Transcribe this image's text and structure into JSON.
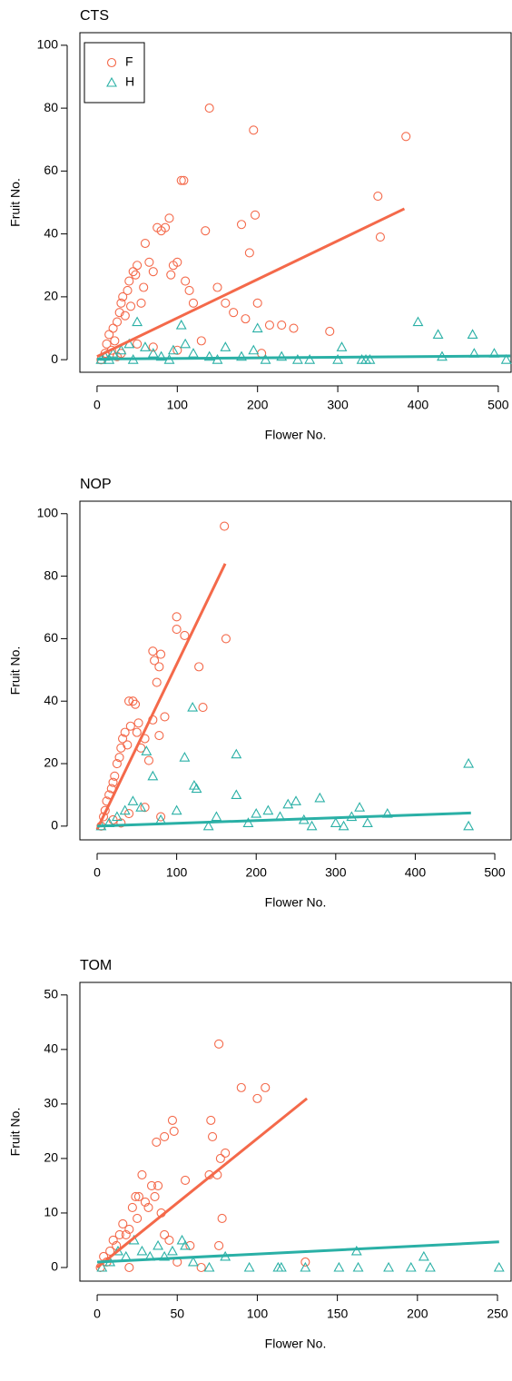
{
  "chart_data": [
    {
      "type": "scatter",
      "title": "CTS",
      "x_label": "Flower No.",
      "y_label": "Fruit No.",
      "xlim": [
        -21.4,
        516
      ],
      "ylim": [
        -4,
        104
      ],
      "xticks": [
        0,
        100,
        200,
        300,
        400,
        500
      ],
      "yticks": [
        0,
        20,
        40,
        60,
        80,
        100
      ],
      "legend": "topleft",
      "series": [
        {
          "name": "F",
          "marker": "circle",
          "color": "#f4694a",
          "x": [
            5,
            10,
            12,
            15,
            18,
            20,
            22,
            25,
            28,
            30,
            32,
            35,
            38,
            40,
            42,
            45,
            48,
            50,
            55,
            58,
            60,
            65,
            70,
            75,
            80,
            85,
            90,
            92,
            95,
            100,
            105,
            108,
            110,
            115,
            120,
            135,
            140,
            150,
            160,
            170,
            180,
            185,
            190,
            195,
            197,
            200,
            205,
            215,
            230,
            245,
            290,
            350,
            353,
            385,
            30,
            50,
            70,
            100,
            130,
            25
          ],
          "values": [
            0,
            2,
            5,
            8,
            3,
            10,
            6,
            12,
            15,
            18,
            20,
            14,
            22,
            25,
            17,
            28,
            27,
            30,
            18,
            23,
            37,
            31,
            28,
            42,
            41,
            42,
            45,
            27,
            30,
            31,
            57,
            57,
            25,
            22,
            18,
            41,
            80,
            23,
            18,
            15,
            43,
            13,
            34,
            73,
            46,
            18,
            2,
            11,
            11,
            10,
            9,
            52,
            39,
            71,
            2,
            5,
            4,
            3,
            6,
            1
          ],
          "fit": {
            "x": [
              0,
              383
            ],
            "y": [
              1,
              48
            ]
          }
        },
        {
          "name": "H",
          "marker": "triangle",
          "color": "#2ab0a6",
          "x": [
            5,
            10,
            20,
            30,
            40,
            50,
            60,
            70,
            80,
            95,
            105,
            110,
            120,
            140,
            160,
            180,
            195,
            200,
            210,
            230,
            250,
            265,
            300,
            305,
            330,
            335,
            340,
            400,
            425,
            430,
            468,
            470,
            495,
            510,
            15,
            45,
            90,
            150
          ],
          "values": [
            0,
            1,
            2,
            3,
            5,
            12,
            4,
            2,
            1,
            3,
            11,
            5,
            2,
            1,
            4,
            1,
            3,
            10,
            0,
            1,
            0,
            0,
            0,
            4,
            0,
            0,
            0,
            12,
            8,
            1,
            8,
            2,
            2,
            0,
            0,
            0,
            0,
            0
          ],
          "fit": {
            "x": [
              0,
              515
            ],
            "y": [
              0.2,
              1.2
            ]
          }
        }
      ]
    },
    {
      "type": "scatter",
      "title": "NOP",
      "x_label": "Flower No.",
      "y_label": "Fruit No.",
      "xlim": [
        -21.7,
        520.5
      ],
      "ylim": [
        -4.4,
        104
      ],
      "xticks": [
        0,
        100,
        200,
        300,
        400,
        500
      ],
      "yticks": [
        0,
        20,
        40,
        60,
        80,
        100
      ],
      "series": [
        {
          "name": "F",
          "marker": "circle",
          "color": "#f4694a",
          "x": [
            5,
            8,
            10,
            12,
            15,
            18,
            20,
            22,
            25,
            28,
            30,
            32,
            35,
            38,
            40,
            42,
            45,
            48,
            50,
            52,
            55,
            60,
            65,
            70,
            72,
            75,
            78,
            80,
            85,
            70,
            78,
            100,
            100,
            110,
            128,
            133,
            160,
            162,
            20,
            40,
            60,
            80,
            30
          ],
          "values": [
            0,
            3,
            5,
            8,
            10,
            12,
            14,
            16,
            20,
            22,
            25,
            28,
            30,
            26,
            40,
            32,
            40,
            39,
            30,
            33,
            25,
            28,
            21,
            56,
            53,
            46,
            51,
            55,
            35,
            34,
            29,
            67,
            63,
            61,
            51,
            38,
            96,
            60,
            2,
            4,
            6,
            3,
            1
          ],
          "fit": {
            "x": [
              0,
              161
            ],
            "y": [
              -1,
              84
            ]
          }
        },
        {
          "name": "H",
          "marker": "triangle",
          "color": "#2ab0a6",
          "x": [
            5,
            15,
            25,
            35,
            45,
            55,
            62,
            70,
            80,
            100,
            110,
            120,
            122,
            125,
            150,
            175,
            175,
            200,
            215,
            230,
            240,
            250,
            260,
            280,
            300,
            320,
            330,
            340,
            365,
            467,
            467,
            140,
            190,
            270,
            310
          ],
          "values": [
            0,
            1,
            3,
            5,
            8,
            6,
            24,
            16,
            2,
            5,
            22,
            38,
            13,
            12,
            3,
            23,
            10,
            4,
            5,
            3,
            7,
            8,
            2,
            9,
            1,
            3,
            6,
            1,
            4,
            20,
            0,
            0,
            1,
            0,
            0
          ],
          "fit": {
            "x": [
              0,
              470
            ],
            "y": [
              0,
              4.2
            ]
          }
        }
      ]
    },
    {
      "type": "scatter",
      "title": "TOM",
      "x_label": "Flower No.",
      "y_label": "Fruit No.",
      "xlim": [
        -10.8,
        258.5
      ],
      "ylim": [
        -2.5,
        52.3
      ],
      "xticks": [
        0,
        50,
        100,
        150,
        200,
        250
      ],
      "yticks": [
        0,
        10,
        20,
        30,
        40,
        50
      ],
      "series": [
        {
          "name": "F",
          "marker": "circle",
          "color": "#f4694a",
          "x": [
            2,
            4,
            6,
            8,
            10,
            12,
            14,
            16,
            18,
            20,
            22,
            24,
            25,
            26,
            28,
            30,
            32,
            34,
            36,
            38,
            40,
            42,
            45,
            47,
            48,
            37,
            42,
            55,
            58,
            70,
            71,
            72,
            75,
            77,
            80,
            76,
            78,
            76,
            90,
            100,
            105,
            130,
            20,
            50,
            65
          ],
          "values": [
            0,
            2,
            1,
            3,
            5,
            4,
            6,
            8,
            6,
            7,
            11,
            13,
            9,
            13,
            17,
            12,
            11,
            15,
            13,
            15,
            10,
            6,
            5,
            27,
            25,
            23,
            24,
            16,
            4,
            17,
            27,
            24,
            17,
            20,
            21,
            41,
            9,
            4,
            33,
            31,
            33,
            1,
            0,
            1,
            0
          ],
          "fit": {
            "x": [
              0,
              131
            ],
            "y": [
              0,
              31
            ]
          }
        },
        {
          "name": "H",
          "marker": "triangle",
          "color": "#2ab0a6",
          "x": [
            3,
            8,
            13,
            18,
            23,
            28,
            33,
            38,
            42,
            47,
            53,
            55,
            60,
            70,
            80,
            95,
            113,
            115,
            130,
            151,
            162,
            163,
            182,
            196,
            204,
            208,
            251
          ],
          "values": [
            0,
            1,
            3,
            2,
            5,
            3,
            2,
            4,
            2,
            3,
            5,
            4,
            1,
            0,
            2,
            0,
            0,
            0,
            0,
            0,
            3,
            0,
            0,
            0,
            2,
            0,
            0
          ],
          "fit": {
            "x": [
              0,
              251
            ],
            "y": [
              1,
              4.7
            ]
          }
        }
      ]
    }
  ]
}
